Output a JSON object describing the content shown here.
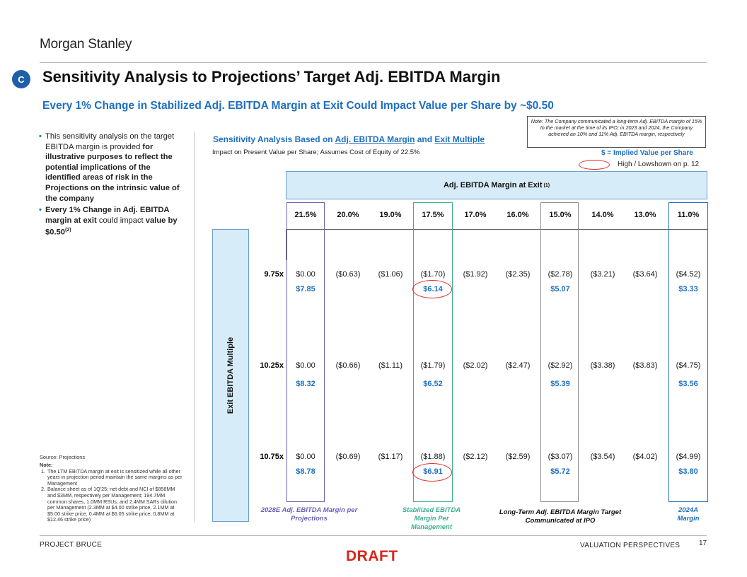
{
  "brand": {
    "logo_text": "Morgan Stanley"
  },
  "section_badge": "C",
  "title": "Sensitivity Analysis to Projections’ Target Adj. EBITDA Margin",
  "subtitle": "Every 1% Change in Stabilized Adj. EBITDA Margin at Exit Could Impact Value per Share by ~$0.50",
  "note_box": "Note: The Company communicated a long-term Adj. EBITDA margin of 15% to the market at the time of its IPO; in 2023 and 2024, the Company achieved an 10% and 11% Adj. EBITDA margin, respectively",
  "bullets": {
    "b1_plain": "This sensitivity analysis on the target EBITDA margin is provided ",
    "b1_bold": "for illustrative purposes to reflect the potential implications of the identified areas of risk in the Projections on the intrinsic value of the company",
    "b2_bold1": "Every 1% Change in Adj. EBITDA margin at exit",
    "b2_plain": " could impact ",
    "b2_bold2": "value by $0.50",
    "b2_sup": "(2)"
  },
  "sensitivity": {
    "title_prefix": "Sensitivity Analysis Based on ",
    "title_link1": "Adj. EBITDA Margin",
    "title_mid": " and ",
    "title_link2": "Exit Multiple",
    "subtitle": "Impact on Present Value per Share; Assumes Cost of Equity of 22.5%",
    "legend_implied": "$ = Implied Value per Share",
    "legend_highlow": "High / Lowshown on p. 12",
    "header": "Adj. EBITDA Margin at Exit",
    "header_sup": "(1)",
    "side_label": "Exit EBITDA Multiple",
    "columns": [
      "21.5%",
      "20.0%",
      "19.0%",
      "17.5%",
      "17.0%",
      "16.0%",
      "15.0%",
      "14.0%",
      "13.0%",
      "11.0%"
    ],
    "rows": [
      {
        "multiple": "9.75x",
        "impacts": [
          "$0.00",
          "($0.63)",
          "($1.06)",
          "($1.70)",
          "($1.92)",
          "($2.35)",
          "($2.78)",
          "($3.21)",
          "($3.64)",
          "($4.52)"
        ],
        "implied": [
          "$7.85",
          "$6.14",
          "$5.07",
          "$3.33"
        ]
      },
      {
        "multiple": "10.25x",
        "impacts": [
          "$0.00",
          "($0.66)",
          "($1.11)",
          "($1.79)",
          "($2.02)",
          "($2.47)",
          "($2.92)",
          "($3.38)",
          "($3.83)",
          "($4.75)"
        ],
        "implied": [
          "$8.32",
          "$6.52",
          "$5.39",
          "$3.56"
        ]
      },
      {
        "multiple": "10.75x",
        "impacts": [
          "$0.00",
          "($0.69)",
          "($1.17)",
          "($1.88)",
          "($2.12)",
          "($2.59)",
          "($3.07)",
          "($3.54)",
          "($4.02)",
          "($4.99)"
        ],
        "implied": [
          "$8.78",
          "$6.91",
          "$5.72",
          "$3.80"
        ]
      }
    ],
    "column_labels": {
      "projections": "2028E Adj. EBITDA Margin per Projections",
      "management": "Stabilized EBITDA Margin Per Management",
      "ipo": "Long-Term Adj. EBITDA Margin Target Communicated at IPO",
      "actual": "2024A Margin"
    },
    "colors": {
      "projections": "#6b63b5",
      "management": "#3bb08f",
      "ipo": "#8f8f8f",
      "actual": "#1f6fc0",
      "highlight": "#d93025"
    }
  },
  "source": "Source: Projections",
  "notes": {
    "heading": "Note:",
    "items": [
      "The LTM EBITDA margin at exit is sensitized while all other years in projection period maintain the same margins as per Management",
      "Balance sheet as of 1Q'25; net debt and NCI of $858MM and $3MM, respectively per Management; 194.7MM common shares, 1.0MM RSUs, and 2.4MM SARs dilution per Management (2.3MM at $4.00 strike price, 2.1MM at $5.00 strike price, 0.4MM at $6.05 strike price, 0.8MM at $12.46 strike price)"
    ]
  },
  "footer": {
    "left": "PROJECT BRUCE",
    "right": "VALUATION PERSPECTIVES",
    "page": "17",
    "stamp": "DRAFT"
  }
}
